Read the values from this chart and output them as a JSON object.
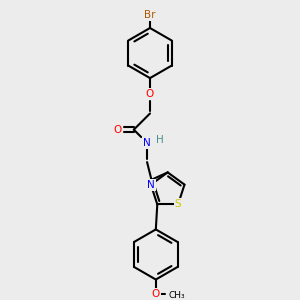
{
  "bg_color": "#ececec",
  "bond_color": "#000000",
  "bond_lw": 1.5,
  "atom_colors": {
    "Br": "#b05a00",
    "O": "#ff0000",
    "N": "#0000ff",
    "S": "#cccc00",
    "H": "#4a9090",
    "C": "#000000"
  },
  "font_size": 7.5,
  "font_size_small": 6.5
}
